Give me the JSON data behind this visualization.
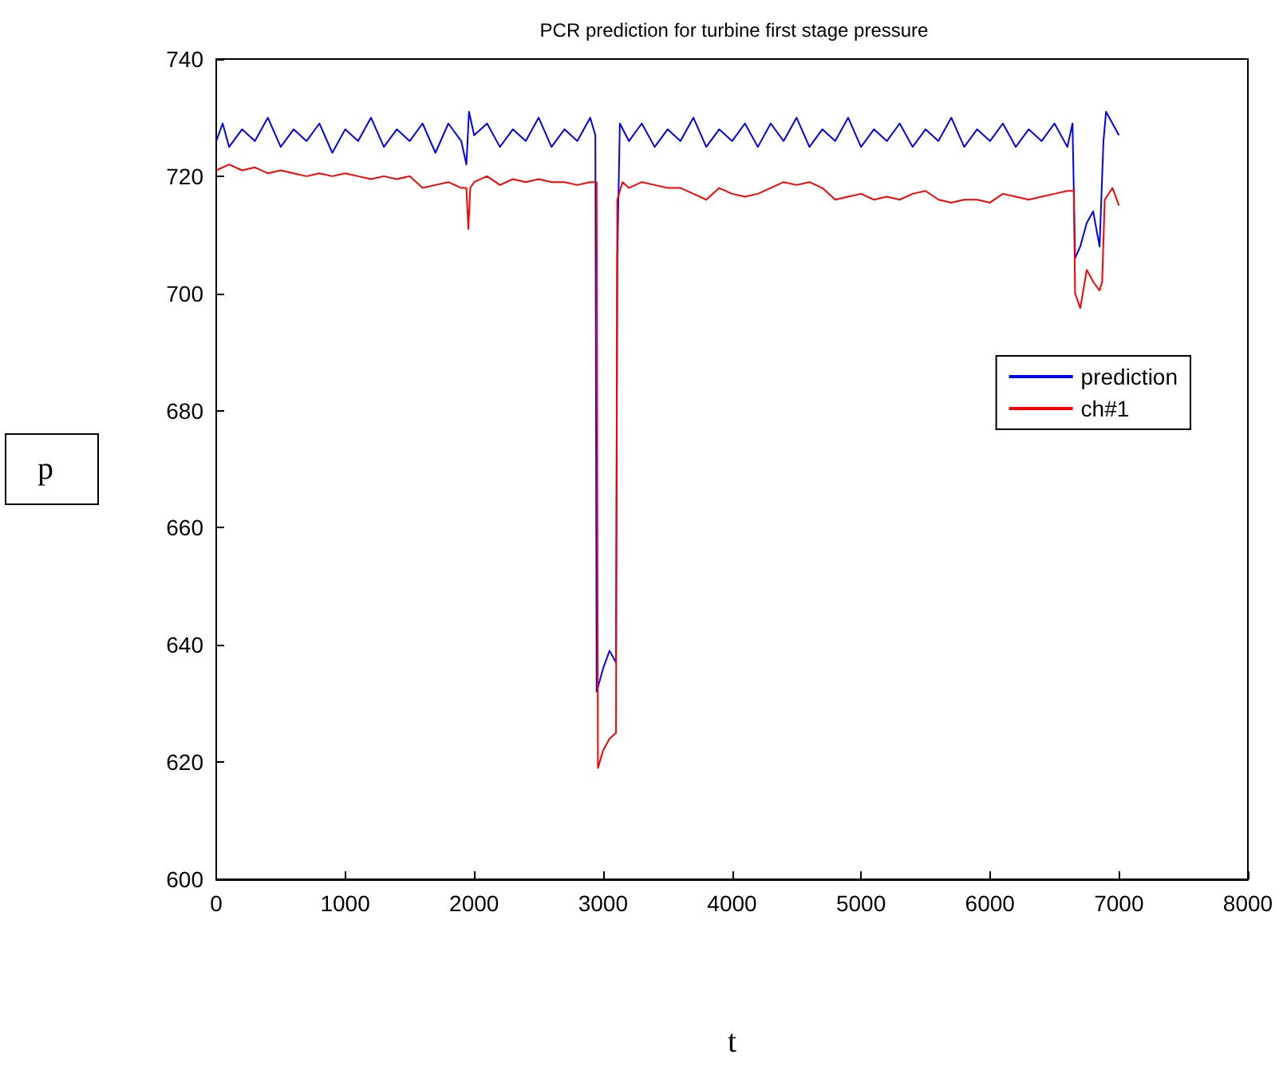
{
  "chart_data": {
    "type": "line",
    "title": "PCR prediction for turbine first stage pressure",
    "xlabel": "t",
    "ylabel": "p",
    "xlim": [
      0,
      8000
    ],
    "xticks": [
      0,
      1000,
      2000,
      3000,
      4000,
      5000,
      6000,
      7000,
      8000
    ],
    "ylim": [
      600,
      740
    ],
    "yticks": [
      600,
      620,
      640,
      660,
      680,
      700,
      720,
      740
    ],
    "legend": "right",
    "grid": false,
    "series": [
      {
        "name": "prediction",
        "color": "#0000ff",
        "x": [
          0,
          50,
          100,
          200,
          300,
          400,
          500,
          600,
          700,
          800,
          900,
          1000,
          1100,
          1200,
          1300,
          1400,
          1500,
          1600,
          1700,
          1800,
          1900,
          1940,
          1960,
          2000,
          2100,
          2200,
          2300,
          2400,
          2500,
          2600,
          2700,
          2800,
          2900,
          2940,
          2950,
          3000,
          3050,
          3100,
          3110,
          3130,
          3200,
          3300,
          3400,
          3500,
          3600,
          3700,
          3800,
          3900,
          4000,
          4100,
          4200,
          4300,
          4400,
          4500,
          4600,
          4700,
          4800,
          4900,
          5000,
          5100,
          5200,
          5300,
          5400,
          5500,
          5600,
          5700,
          5800,
          5900,
          6000,
          6100,
          6200,
          6300,
          6400,
          6500,
          6600,
          6640,
          6660,
          6700,
          6750,
          6800,
          6850,
          6880,
          6900,
          6950,
          7000
        ],
        "values": [
          726,
          729,
          725,
          728,
          726,
          730,
          725,
          728,
          726,
          729,
          724,
          728,
          726,
          730,
          725,
          728,
          726,
          729,
          724,
          729,
          726,
          722,
          731,
          727,
          729,
          725,
          728,
          726,
          730,
          725,
          728,
          726,
          730,
          727,
          632,
          636,
          639,
          637,
          706,
          729,
          726,
          729,
          725,
          728,
          726,
          730,
          725,
          728,
          726,
          729,
          725,
          729,
          726,
          730,
          725,
          728,
          726,
          730,
          725,
          728,
          726,
          729,
          725,
          728,
          726,
          730,
          725,
          728,
          726,
          729,
          725,
          728,
          726,
          729,
          725,
          729,
          706,
          708,
          712,
          714,
          708,
          726,
          731,
          729,
          727
        ]
      },
      {
        "name": "ch#1",
        "color": "#ff0000",
        "x": [
          0,
          100,
          200,
          300,
          400,
          500,
          600,
          700,
          800,
          900,
          1000,
          1100,
          1200,
          1300,
          1400,
          1500,
          1600,
          1700,
          1800,
          1900,
          1940,
          1955,
          1970,
          2000,
          2100,
          2200,
          2300,
          2400,
          2500,
          2600,
          2700,
          2800,
          2900,
          2950,
          2960,
          3000,
          3050,
          3100,
          3110,
          3150,
          3200,
          3300,
          3400,
          3500,
          3600,
          3700,
          3800,
          3900,
          4000,
          4100,
          4200,
          4300,
          4400,
          4500,
          4600,
          4700,
          4800,
          4900,
          5000,
          5100,
          5200,
          5300,
          5400,
          5500,
          5600,
          5700,
          5800,
          5900,
          6000,
          6100,
          6200,
          6300,
          6400,
          6500,
          6600,
          6650,
          6660,
          6700,
          6750,
          6800,
          6850,
          6870,
          6890,
          6950,
          7000
        ],
        "values": [
          721,
          722,
          721,
          721.5,
          720.5,
          721,
          720.5,
          720,
          720.5,
          720,
          720.5,
          720,
          719.5,
          720,
          719.5,
          720,
          718,
          718.5,
          719,
          718,
          718,
          711,
          718,
          719,
          720,
          718.5,
          719.5,
          719,
          719.5,
          719,
          719,
          718.5,
          719,
          719,
          619,
          622,
          624,
          625,
          716,
          719,
          718,
          719,
          718.5,
          718,
          718,
          717,
          716,
          718,
          717,
          716.5,
          717,
          718,
          719,
          718.5,
          719,
          718,
          716,
          716.5,
          717,
          716,
          716.5,
          716,
          717,
          717.5,
          716,
          715.5,
          716,
          716,
          715.5,
          717,
          716.5,
          716,
          716.5,
          717,
          717.5,
          717.5,
          700,
          697.5,
          704,
          702,
          700.5,
          702,
          716,
          718,
          715
        ]
      }
    ]
  }
}
